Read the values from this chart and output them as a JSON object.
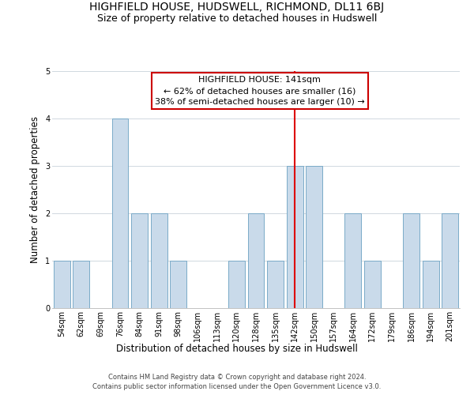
{
  "title": "HIGHFIELD HOUSE, HUDSWELL, RICHMOND, DL11 6BJ",
  "subtitle": "Size of property relative to detached houses in Hudswell",
  "xlabel": "Distribution of detached houses by size in Hudswell",
  "ylabel": "Number of detached properties",
  "bin_labels": [
    "54sqm",
    "62sqm",
    "69sqm",
    "76sqm",
    "84sqm",
    "91sqm",
    "98sqm",
    "106sqm",
    "113sqm",
    "120sqm",
    "128sqm",
    "135sqm",
    "142sqm",
    "150sqm",
    "157sqm",
    "164sqm",
    "172sqm",
    "179sqm",
    "186sqm",
    "194sqm",
    "201sqm"
  ],
  "bar_heights": [
    1,
    1,
    0,
    4,
    2,
    2,
    1,
    0,
    0,
    1,
    2,
    1,
    3,
    3,
    0,
    2,
    1,
    0,
    2,
    1,
    2
  ],
  "bar_color": "#c9daea",
  "bar_edgecolor": "#7aaac8",
  "redline_index": 12,
  "redline_color": "#dd0000",
  "annotation_title": "HIGHFIELD HOUSE: 141sqm",
  "annotation_line1": "← 62% of detached houses are smaller (16)",
  "annotation_line2": "38% of semi-detached houses are larger (10) →",
  "annotation_box_color": "#ffffff",
  "annotation_box_edgecolor": "#cc0000",
  "ylim": [
    0,
    5
  ],
  "yticks": [
    0,
    1,
    2,
    3,
    4,
    5
  ],
  "background_color": "#ffffff",
  "footer_line1": "Contains HM Land Registry data © Crown copyright and database right 2024.",
  "footer_line2": "Contains public sector information licensed under the Open Government Licence v3.0.",
  "title_fontsize": 10,
  "subtitle_fontsize": 9,
  "axis_label_fontsize": 8.5,
  "tick_fontsize": 7,
  "annotation_fontsize": 8,
  "footer_fontsize": 6
}
